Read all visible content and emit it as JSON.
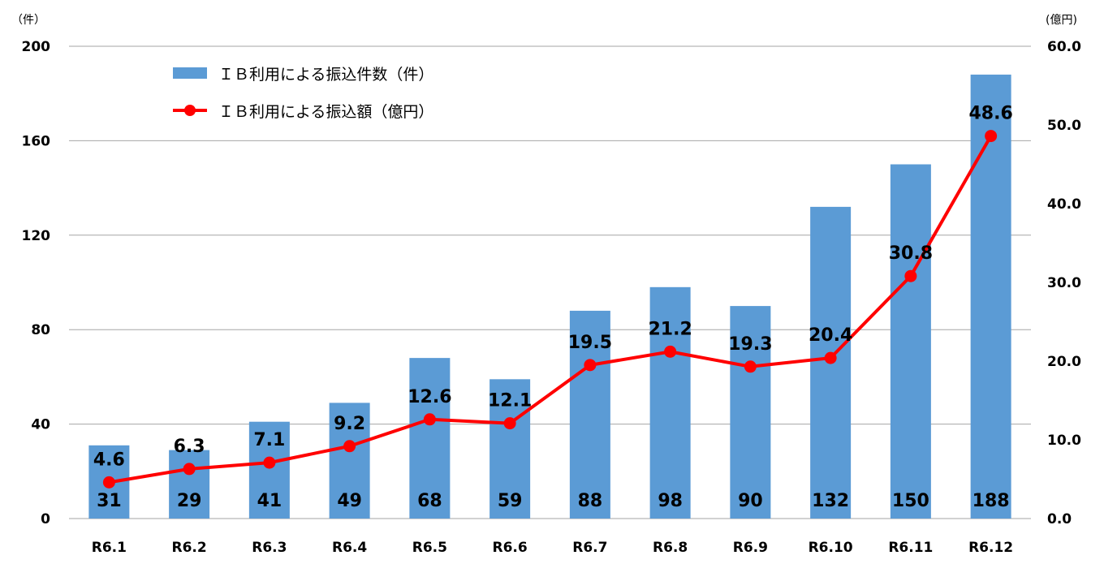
{
  "chart_data": {
    "type": "bar",
    "categories": [
      "R6.1",
      "R6.2",
      "R6.3",
      "R6.4",
      "R6.5",
      "R6.6",
      "R6.7",
      "R6.8",
      "R6.9",
      "R6.10",
      "R6.11",
      "R6.12"
    ],
    "series": [
      {
        "name": "ＩＢ利用による振込件数（件）",
        "type": "bar",
        "axis": "left",
        "values": [
          31,
          29,
          41,
          49,
          68,
          59,
          88,
          98,
          90,
          132,
          150,
          188
        ],
        "color": "#5b9bd5"
      },
      {
        "name": "ＩＢ利用による振込額（億円）",
        "type": "line",
        "axis": "right",
        "values": [
          4.6,
          6.3,
          7.1,
          9.2,
          12.6,
          12.1,
          19.5,
          21.2,
          19.3,
          20.4,
          30.8,
          48.6
        ],
        "color": "#ff0000"
      }
    ],
    "left_axis": {
      "unit": "（件）",
      "ylim": [
        0,
        200
      ],
      "ticks": [
        "0",
        "40",
        "80",
        "120",
        "160",
        "200"
      ]
    },
    "right_axis": {
      "unit": "(億円)",
      "ylim": [
        0,
        60
      ],
      "ticks": [
        "0.0",
        "10.0",
        "20.0",
        "30.0",
        "40.0",
        "50.0",
        "60.0"
      ]
    },
    "grid": true,
    "legend_position": "top-left"
  }
}
